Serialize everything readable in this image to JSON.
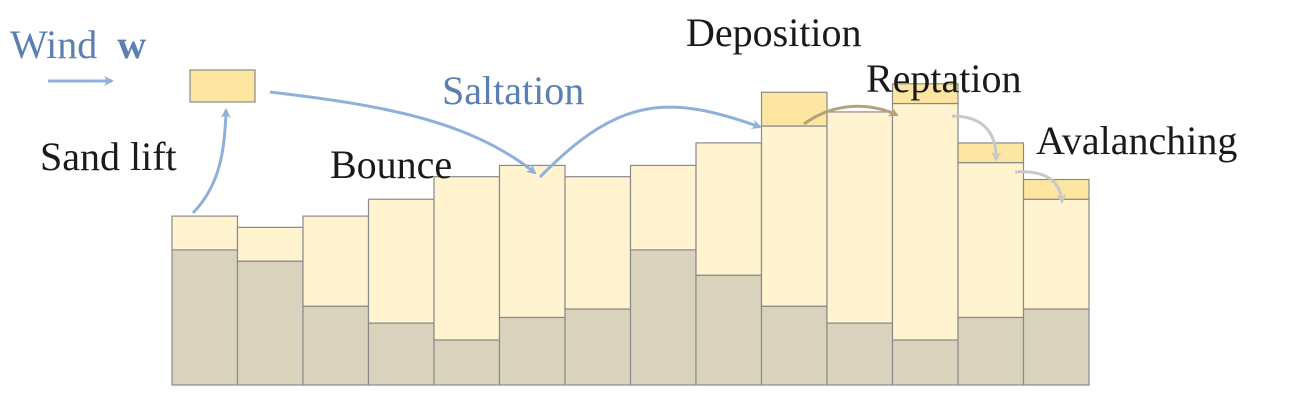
{
  "labels": {
    "wind": "Wind",
    "wind_vector": "w",
    "sand_lift": "Sand lift",
    "bounce": "Bounce",
    "saltation": "Saltation",
    "deposition": "Deposition",
    "reptation": "Reptation",
    "avalanching": "Avalanching"
  },
  "colors": {
    "bedrock": "#d9d3bd",
    "sand": "#fff4cf",
    "moving_sand": "#fde6a1",
    "outline": "#8a8a8a",
    "wind_arrow": "#8fb0d8",
    "deposition_arrow": "#b5a27c",
    "avalanche_arrow": "#c8c8c8",
    "label_blue": "#5a7fb0"
  },
  "columns": [
    {
      "bedrock": 2.4,
      "sand": 0.6
    },
    {
      "bedrock": 2.2,
      "sand": 0.6
    },
    {
      "bedrock": 1.4,
      "sand": 1.6
    },
    {
      "bedrock": 1.1,
      "sand": 2.2
    },
    {
      "bedrock": 0.8,
      "sand": 2.9
    },
    {
      "bedrock": 1.2,
      "sand": 2.7
    },
    {
      "bedrock": 1.35,
      "sand": 2.35
    },
    {
      "bedrock": 2.4,
      "sand": 1.5
    },
    {
      "bedrock": 1.95,
      "sand": 2.35
    },
    {
      "bedrock": 1.4,
      "sand": 3.2,
      "moving": 0.6
    },
    {
      "bedrock": 1.1,
      "sand": 3.75
    },
    {
      "bedrock": 0.8,
      "sand": 4.2,
      "moving": 0.35
    },
    {
      "bedrock": 1.2,
      "sand": 2.75,
      "moving": 0.35
    },
    {
      "bedrock": 1.35,
      "sand": 1.95,
      "moving": 0.35
    }
  ]
}
